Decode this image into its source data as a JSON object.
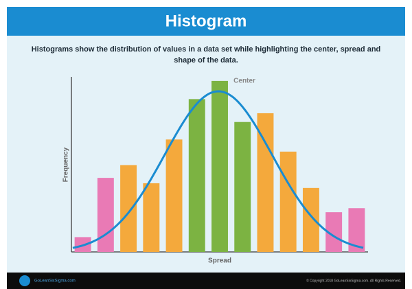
{
  "chart_data": {
    "type": "bar",
    "title": "Histogram",
    "subtitle": "Histograms show the distribution of values in a data set while highlighting the center, spread and shape of the data.",
    "annotation": "Center",
    "xlabel": "Spread",
    "ylabel": "Frequency",
    "values": [
      22,
      110,
      129,
      102,
      167,
      227,
      254,
      193,
      206,
      149,
      95,
      59,
      65
    ],
    "colors": [
      "#e97ab5",
      "#e97ab5",
      "#f4a93c",
      "#f4a93c",
      "#f4a93c",
      "#7cb342",
      "#7cb342",
      "#7cb342",
      "#f4a93c",
      "#f4a93c",
      "#f4a93c",
      "#e97ab5",
      "#e97ab5"
    ],
    "ylim": [
      0,
      260
    ]
  },
  "footer": {
    "logo": "GoLeanSixSigma.com",
    "copyright": "© Copyright 2018 GoLeanSixSigma.com. All Rights Reserved."
  }
}
